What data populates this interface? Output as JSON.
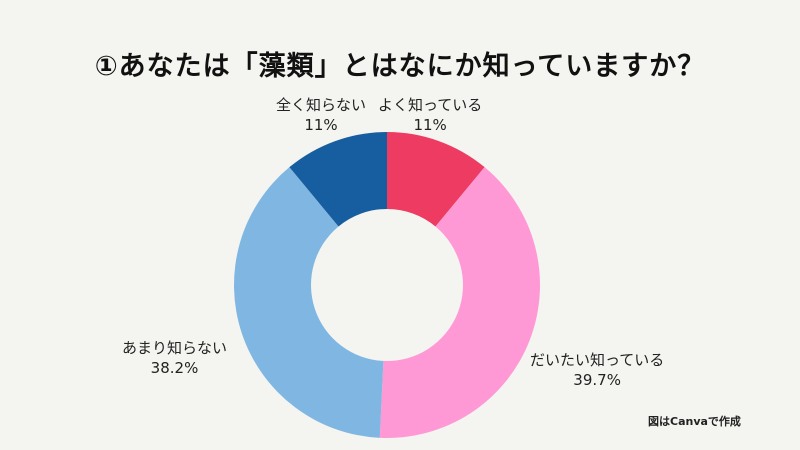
{
  "title": "①あなたは「藻類」とはなにか知っていますか？",
  "credit": "図はCanvaで作成",
  "chart_data": {
    "type": "pie",
    "variant": "donut",
    "title": "①あなたは「藻類」とはなにか知っていますか？",
    "categories": [
      "よく知っている",
      "だいたい知っている",
      "あまり知らない",
      "全く知らない"
    ],
    "values": [
      11,
      39.7,
      38.2,
      11
    ],
    "unit": "%",
    "colors": [
      "#EE3B61",
      "#FF99D6",
      "#7FB7E2",
      "#175EA0"
    ],
    "start_angle": "top (12 o'clock), clockwise",
    "legend": "none (direct labels)"
  },
  "labels": [
    {
      "name": "よく知っている",
      "value": "11%"
    },
    {
      "name": "だいたい知っている",
      "value": "39.7%"
    },
    {
      "name": "あまり知らない",
      "value": "38.2%"
    },
    {
      "name": "全く知らない",
      "value": "11%"
    }
  ]
}
